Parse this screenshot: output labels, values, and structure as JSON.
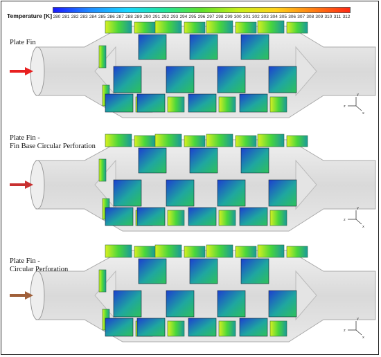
{
  "legend": {
    "title": "Temperature [K]",
    "ticks": [
      "280",
      "281",
      "282",
      "283",
      "284",
      "285",
      "286",
      "287",
      "288",
      "289",
      "290",
      "291",
      "292",
      "293",
      "294",
      "295",
      "296",
      "297",
      "298",
      "299",
      "300",
      "301",
      "302",
      "303",
      "304",
      "305",
      "306",
      "307",
      "308",
      "309",
      "310",
      "311",
      "312"
    ],
    "gradient": [
      "#1a1aff",
      "#1f8cff",
      "#19d6ff",
      "#22e39a",
      "#5fe02a",
      "#c9ef1a",
      "#ffd21a",
      "#ff7f12",
      "#ff2a14"
    ]
  },
  "panels": [
    {
      "title_lines": [
        "Plate Fin"
      ],
      "arrow_color": "#e82020",
      "axis_labels": {
        "x": "x",
        "y": "y",
        "z": "z"
      }
    },
    {
      "title_lines": [
        "Plate Fin -",
        "Fin Base Circular Perforation"
      ],
      "arrow_color": "#c83030",
      "axis_labels": {
        "x": "x",
        "y": "y",
        "z": "z"
      }
    },
    {
      "title_lines": [
        "Plate Fin -",
        "Circular Perforation"
      ],
      "arrow_color": "#a0603a",
      "axis_labels": {
        "x": "x",
        "y": "y",
        "z": "z"
      }
    }
  ]
}
